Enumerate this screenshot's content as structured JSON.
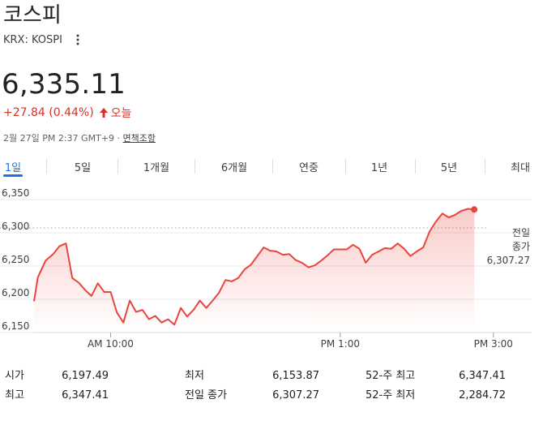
{
  "header": {
    "title": "코스피",
    "ticker": "KRX: KOSPI",
    "more_icon": "more-vert-icon"
  },
  "quote": {
    "price": "6,335.11",
    "change": "+27.84 (0.44%)",
    "change_period": "오늘",
    "direction_icon": "arrow-up-icon",
    "change_color": "#d93025",
    "timestamp": "2월 27일 PM 2:37 GMT+9 · ",
    "disclaimer": "면책조항"
  },
  "tabs": [
    {
      "label": "1일",
      "active": true
    },
    {
      "label": "5일"
    },
    {
      "label": "1개월"
    },
    {
      "label": "6개월"
    },
    {
      "label": "연중"
    },
    {
      "label": "1년"
    },
    {
      "label": "5년"
    },
    {
      "label": "최대"
    }
  ],
  "chart_data": {
    "type": "line",
    "y_ticks": [
      "6,350",
      "6,300",
      "6,250",
      "6,200",
      "6,150"
    ],
    "y_tick_values": [
      6350,
      6300,
      6250,
      6200,
      6150
    ],
    "ylim": [
      6150,
      6350
    ],
    "x_ticks": [
      "AM 10:00",
      "PM 1:00",
      "PM 3:00"
    ],
    "x_tick_minutes": [
      60,
      240,
      360
    ],
    "x_domain_minutes": [
      0,
      390
    ],
    "grid": "horizontal",
    "line_color": "#e8453c",
    "previous_close": {
      "label_line1": "전일",
      "label_line2": "종가",
      "value_text": "6,307.27",
      "value": 6307.27
    },
    "series": [
      {
        "x": [
          0,
          3,
          9,
          15,
          20,
          25,
          30,
          35,
          40,
          45,
          50,
          55,
          60,
          65,
          70,
          75,
          80,
          85,
          90,
          95,
          100,
          105,
          110,
          115,
          120,
          125,
          130,
          135,
          140,
          145,
          150,
          155,
          160,
          165,
          170,
          175,
          180,
          185,
          190,
          195,
          200,
          205,
          210,
          215,
          220,
          225,
          230,
          235,
          240,
          245,
          250,
          255,
          260,
          265,
          270,
          275,
          280,
          285,
          290,
          295,
          300,
          305,
          310,
          315,
          320,
          325,
          330,
          335,
          340,
          345
        ],
        "y": [
          6197,
          6233,
          6258,
          6268,
          6280,
          6284,
          6232,
          6225,
          6214,
          6205,
          6224,
          6211,
          6211,
          6180,
          6165,
          6198,
          6181,
          6184,
          6170,
          6175,
          6165,
          6170,
          6162,
          6187,
          6174,
          6184,
          6198,
          6187,
          6198,
          6210,
          6229,
          6227,
          6232,
          6245,
          6252,
          6265,
          6278,
          6273,
          6272,
          6267,
          6268,
          6259,
          6255,
          6248,
          6251,
          6258,
          6266,
          6275,
          6275,
          6275,
          6282,
          6276,
          6255,
          6267,
          6272,
          6277,
          6276,
          6284,
          6276,
          6265,
          6272,
          6278,
          6302,
          6317,
          6329,
          6323,
          6327,
          6333,
          6336,
          6335
        ]
      }
    ]
  },
  "stats": [
    {
      "label": "시가",
      "value": "6,197.49"
    },
    {
      "label": "최고",
      "value": "6,347.41"
    },
    {
      "label": "최저",
      "value": "6,153.87"
    },
    {
      "label": "전일 종가",
      "value": "6,307.27"
    },
    {
      "label": "52-주 최고",
      "value": "6,347.41"
    },
    {
      "label": "52-주 최저",
      "value": "2,284.72"
    }
  ]
}
